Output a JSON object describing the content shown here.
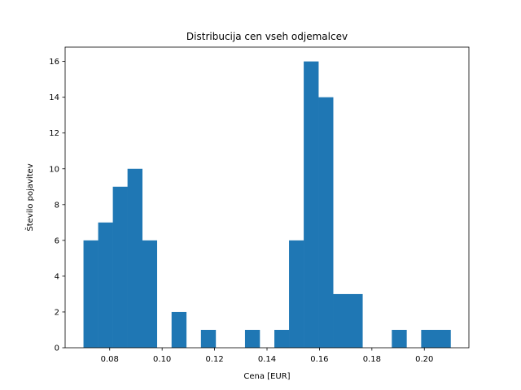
{
  "chart_data": {
    "type": "bar",
    "subtype": "histogram",
    "title": "Distribucija cen vseh odjemalcev",
    "xlabel": "Cena [EUR]",
    "ylabel": "Število pojavitev",
    "xlim": [
      0.063,
      0.217
    ],
    "ylim": [
      0,
      16.8
    ],
    "x_ticks": [
      0.08,
      0.1,
      0.12,
      0.14,
      0.16,
      0.18,
      0.2
    ],
    "x_tick_labels": [
      "0.08",
      "0.10",
      "0.12",
      "0.14",
      "0.16",
      "0.18",
      "0.20"
    ],
    "y_ticks": [
      0,
      2,
      4,
      6,
      8,
      10,
      12,
      14,
      16
    ],
    "y_tick_labels": [
      "0",
      "2",
      "4",
      "6",
      "8",
      "10",
      "12",
      "14",
      "16"
    ],
    "bar_color": "#1f77b4",
    "grid": false,
    "bins": {
      "start": 0.07,
      "end": 0.21,
      "counts": [
        6,
        7,
        9,
        10,
        6,
        0,
        2,
        0,
        1,
        0,
        0,
        1,
        0,
        1,
        6,
        16,
        14,
        3,
        3,
        0,
        0,
        1,
        0,
        1,
        1
      ]
    }
  }
}
